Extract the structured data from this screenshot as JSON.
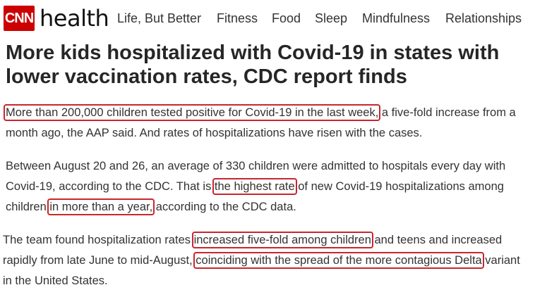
{
  "header": {
    "brand": "CNN",
    "section": "health",
    "nav": [
      "Life, But Better",
      "Fitness",
      "Food",
      "Sleep",
      "Mindfulness",
      "Relationships"
    ]
  },
  "headline": "More kids hospitalized with Covid-19 in states with lower vaccination rates, CDC report finds",
  "paragraphs": [
    {
      "hl1": "More than 200,000 children tested positive for Covid-19 in the last week,",
      "t1": " a five-fold increase from a month ago, the AAP said. And rates of hospitalizations have risen with the cases."
    },
    {
      "t1": "Between August 20 and 26, an average of 330 children were admitted to hospitals every day with Covid-19, according to the CDC. That is ",
      "hl1": "the highest rate",
      "t2": " of new Covid-19 hospitalizations among children ",
      "hl2": "in more than a year,",
      "t3": " according to the CDC data."
    },
    {
      "t1": "The team found hospitalization rates ",
      "hl1": "increased five-fold among children",
      "t2": " and teens and increased rapidly from late June to mid-August, ",
      "hl2": "coinciding with the spread of the more contagious Delta",
      "t3": " variant in the United States."
    }
  ],
  "colors": {
    "brand_red": "#cc0000",
    "highlight_box": "#c8262d"
  }
}
